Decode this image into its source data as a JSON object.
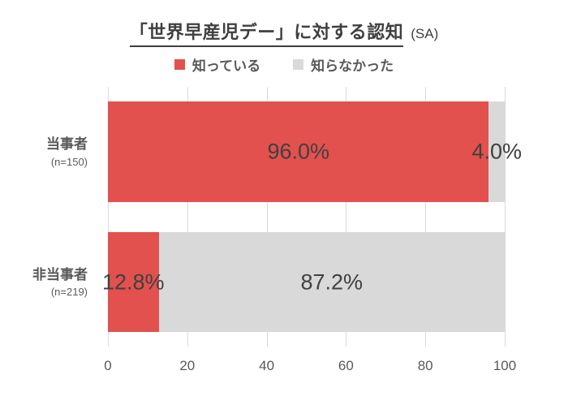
{
  "title": {
    "text": "「世界早産児デー」に対する認知",
    "suffix": "(SA)"
  },
  "chart_data": {
    "type": "bar",
    "orientation": "horizontal",
    "stacked": true,
    "title": "「世界早産児デー」に対する認知 (SA)",
    "categories": [
      {
        "label": "当事者",
        "n": "(n=150)"
      },
      {
        "label": "非当事者",
        "n": "(n=219)"
      }
    ],
    "series": [
      {
        "name": "知っている",
        "color": "#e2514e",
        "values": [
          96.0,
          12.8
        ]
      },
      {
        "name": "知らなかった",
        "color": "#d9d9d9",
        "values": [
          4.0,
          87.2
        ]
      }
    ],
    "data_labels": [
      [
        "96.0%",
        "4.0%"
      ],
      [
        "12.8%",
        "87.2%"
      ]
    ],
    "x_ticks": [
      0,
      20,
      40,
      60,
      80,
      100
    ],
    "xlim": [
      0,
      100
    ],
    "grid": "vertical",
    "legend_position": "top",
    "colors": {
      "data_label_text": "#404040",
      "axis_text": "#595959",
      "gridline": "#d9d9d9",
      "title_text": "#3f3f3f"
    }
  }
}
